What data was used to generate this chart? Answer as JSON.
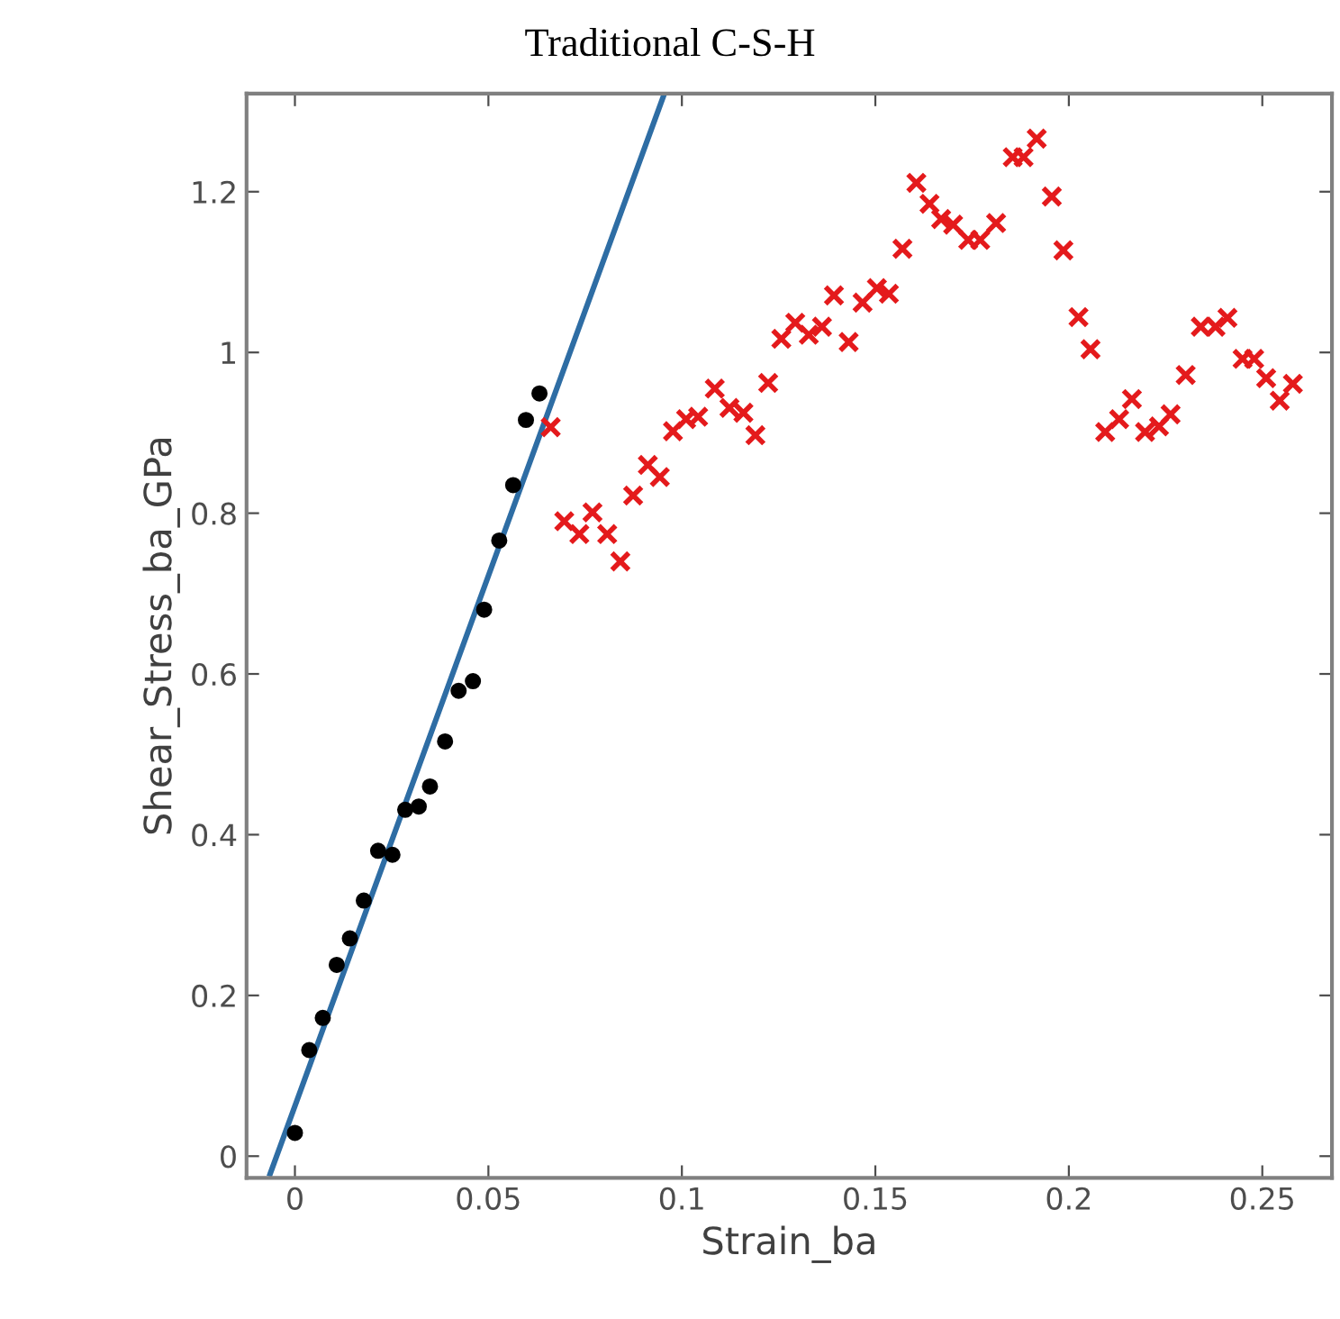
{
  "chart_data": {
    "type": "scatter",
    "title": "Traditional C-S-H",
    "xlabel": "Strain_ba",
    "ylabel": "Shear_Stress_ba_GPa",
    "xlim": [
      -0.0125,
      0.268
    ],
    "ylim": [
      -0.027,
      1.322
    ],
    "xticks": [
      0,
      0.05,
      0.1,
      0.15,
      0.2,
      0.25
    ],
    "yticks": [
      0,
      0.2,
      0.4,
      0.6,
      0.8,
      1,
      1.2
    ],
    "grid": false,
    "legend": false,
    "series": [
      {
        "marker": "circle",
        "color": "#000000",
        "x": [
          0,
          0.0037,
          0.0072,
          0.0108,
          0.0142,
          0.0178,
          0.0215,
          0.0252,
          0.0285,
          0.032,
          0.0349,
          0.0388,
          0.0423,
          0.046,
          0.0489,
          0.0528,
          0.0564,
          0.0597,
          0.0632
        ],
        "values": [
          0.029,
          0.132,
          0.172,
          0.238,
          0.271,
          0.318,
          0.38,
          0.375,
          0.431,
          0.435,
          0.46,
          0.516,
          0.579,
          0.591,
          0.68,
          0.766,
          0.835,
          0.916,
          0.949
        ]
      },
      {
        "marker": "cross",
        "color": "#e41a1c",
        "x": [
          0.0661,
          0.0696,
          0.0735,
          0.0769,
          0.0807,
          0.0841,
          0.0874,
          0.0912,
          0.0943,
          0.0977,
          0.1011,
          0.1042,
          0.1085,
          0.1123,
          0.1159,
          0.119,
          0.1223,
          0.1257,
          0.1293,
          0.1328,
          0.1362,
          0.1393,
          0.1431,
          0.1467,
          0.1504,
          0.1535,
          0.157,
          0.1606,
          0.164,
          0.167,
          0.1701,
          0.174,
          0.1771,
          0.1812,
          0.1855,
          0.1883,
          0.1917,
          0.1956,
          0.1986,
          0.2025,
          0.2056,
          0.2094,
          0.213,
          0.2163,
          0.2197,
          0.2233,
          0.2263,
          0.2302,
          0.2341,
          0.2379,
          0.241,
          0.2449,
          0.2479,
          0.251,
          0.2545,
          0.2579
        ],
        "values": [
          0.907,
          0.79,
          0.774,
          0.801,
          0.774,
          0.74,
          0.822,
          0.86,
          0.845,
          0.902,
          0.917,
          0.92,
          0.955,
          0.931,
          0.925,
          0.897,
          0.962,
          1.017,
          1.037,
          1.022,
          1.032,
          1.071,
          1.013,
          1.062,
          1.08,
          1.073,
          1.129,
          1.211,
          1.185,
          1.166,
          1.159,
          1.14,
          1.14,
          1.161,
          1.243,
          1.243,
          1.266,
          1.194,
          1.127,
          1.044,
          1.004,
          0.901,
          0.917,
          0.942,
          0.901,
          0.908,
          0.923,
          0.972,
          1.032,
          1.032,
          1.043,
          0.992,
          0.992,
          0.968,
          0.94,
          0.961
        ]
      },
      {
        "type": "line",
        "marker": "none",
        "line_style": "solid",
        "color": "#2e6da4",
        "x": [
          -0.0064,
          0.0954
        ],
        "values": [
          -0.022,
          1.321
        ]
      }
    ]
  }
}
